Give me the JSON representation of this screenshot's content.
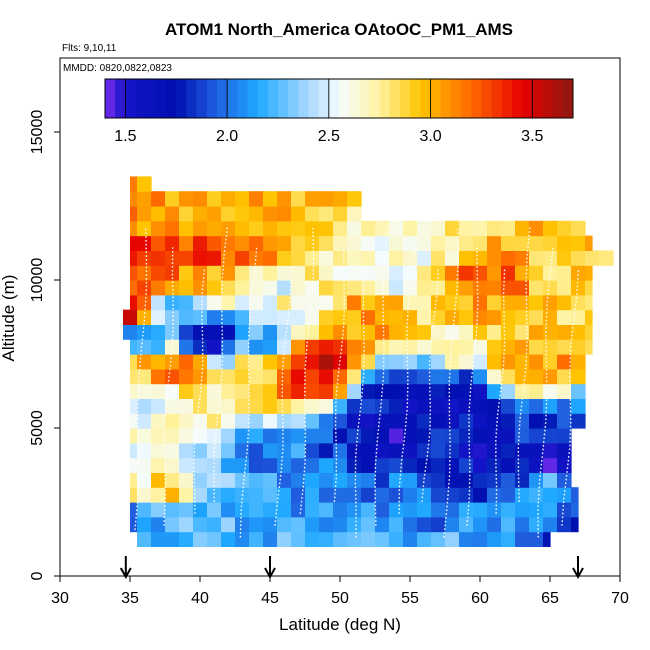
{
  "chart_data": {
    "type": "heatmap",
    "title": "ATOM1 North_America OAtoOC_PM1_AMS",
    "flights_label": "Flts: 9,10,11",
    "dates_label": "MMDD: 0820,0822,0823",
    "xlabel": "Latitude (deg N)",
    "ylabel": "Altitude (m)",
    "xlim": [
      30,
      70
    ],
    "ylim": [
      0,
      17500
    ],
    "x_ticks": [
      30,
      35,
      40,
      45,
      50,
      55,
      60,
      65,
      70
    ],
    "y_ticks": [
      0,
      5000,
      10000,
      15000
    ],
    "x_tick_labels": [
      "30",
      "35",
      "40",
      "45",
      "50",
      "55",
      "60",
      "65",
      "70"
    ],
    "y_tick_labels": [
      "0",
      "5000",
      "10000",
      "15000"
    ],
    "colorbar": {
      "range": [
        1.4,
        3.7
      ],
      "ticks": [
        1.5,
        2.0,
        2.5,
        3.0,
        3.5
      ],
      "tick_labels": [
        "1.5",
        "2.0",
        "2.5",
        "3.0",
        "3.5"
      ],
      "stops": [
        {
          "value": 1.4,
          "color": "#7b2cf0"
        },
        {
          "value": 1.5,
          "color": "#1414c8"
        },
        {
          "value": 1.75,
          "color": "#0010b0"
        },
        {
          "value": 1.95,
          "color": "#2060e0"
        },
        {
          "value": 2.15,
          "color": "#1ea8ff"
        },
        {
          "value": 2.4,
          "color": "#a9d9ff"
        },
        {
          "value": 2.55,
          "color": "#f5fcff"
        },
        {
          "value": 2.75,
          "color": "#fff3a0"
        },
        {
          "value": 2.95,
          "color": "#ffc400"
        },
        {
          "value": 3.2,
          "color": "#ff6a00"
        },
        {
          "value": 3.45,
          "color": "#e60000"
        },
        {
          "value": 3.7,
          "color": "#8e1a12"
        }
      ]
    },
    "grid_lat_start": 34.5,
    "grid_lat_step": 1,
    "grid_alt_start": 1000,
    "grid_alt_step": 500,
    "cells": [
      {
        "lat": 35.5,
        "alt": 1000,
        "value": 2.25
      },
      {
        "lat": 37.5,
        "alt": 1000,
        "value": 2.2
      },
      {
        "lat": 40.5,
        "alt": 1000,
        "value": 2.15
      },
      {
        "lat": 44.5,
        "alt": 1000,
        "value": 2.2
      },
      {
        "lat": 49.5,
        "alt": 1000,
        "value": 2.25
      },
      {
        "lat": 53.5,
        "alt": 1000,
        "value": 2.15
      },
      {
        "lat": 58.5,
        "alt": 1000,
        "value": 2.2
      },
      {
        "lat": 64.5,
        "alt": 1000,
        "value": 2.05
      },
      {
        "lat": 65.5,
        "alt": 1000,
        "value": 1.45
      },
      {
        "lat": 35.5,
        "alt": 2000,
        "value": 2.0
      },
      {
        "lat": 39.5,
        "alt": 2000,
        "value": 2.3
      },
      {
        "lat": 44.5,
        "alt": 2000,
        "value": 2.1
      },
      {
        "lat": 50.5,
        "alt": 2000,
        "value": 2.15
      },
      {
        "lat": 56.5,
        "alt": 2000,
        "value": 2.0
      },
      {
        "lat": 62.5,
        "alt": 2000,
        "value": 2.2
      },
      {
        "lat": 35.5,
        "alt": 3000,
        "value": 2.7
      },
      {
        "lat": 37.5,
        "alt": 3000,
        "value": 2.9
      },
      {
        "lat": 40.5,
        "alt": 3000,
        "value": 2.35
      },
      {
        "lat": 44.5,
        "alt": 3000,
        "value": 2.1
      },
      {
        "lat": 53.5,
        "alt": 3000,
        "value": 2.0
      },
      {
        "lat": 61.5,
        "alt": 3000,
        "value": 1.85
      },
      {
        "lat": 64.5,
        "alt": 3000,
        "value": 2.2
      },
      {
        "lat": 44.5,
        "alt": 4000,
        "value": 2.05
      },
      {
        "lat": 53.5,
        "alt": 4000,
        "value": 1.75
      },
      {
        "lat": 61.5,
        "alt": 4000,
        "value": 1.6
      },
      {
        "lat": 63.5,
        "alt": 4000,
        "value": 1.7
      },
      {
        "lat": 65.5,
        "alt": 4000,
        "value": 1.5
      },
      {
        "lat": 52.5,
        "alt": 5000,
        "value": 1.7
      },
      {
        "lat": 54.5,
        "alt": 5000,
        "value": 1.45
      },
      {
        "lat": 55.5,
        "alt": 5000,
        "value": 1.8
      },
      {
        "lat": 64.5,
        "alt": 5000,
        "value": 1.9
      },
      {
        "lat": 36.5,
        "alt": 6000,
        "value": 2.5
      },
      {
        "lat": 40.5,
        "alt": 6000,
        "value": 2.7
      },
      {
        "lat": 53.5,
        "alt": 6000,
        "value": 1.7
      },
      {
        "lat": 58.5,
        "alt": 6000,
        "value": 1.6
      },
      {
        "lat": 35.5,
        "alt": 7000,
        "value": 2.95
      },
      {
        "lat": 38.5,
        "alt": 7000,
        "value": 3.3
      },
      {
        "lat": 44.5,
        "alt": 7000,
        "value": 2.95
      },
      {
        "lat": 47.5,
        "alt": 7000,
        "value": 3.4
      },
      {
        "lat": 48.5,
        "alt": 7000,
        "value": 3.5
      },
      {
        "lat": 63.5,
        "alt": 7000,
        "value": 3.1
      },
      {
        "lat": 35.5,
        "alt": 8000,
        "value": 2.05
      },
      {
        "lat": 40.5,
        "alt": 8000,
        "value": 1.6
      },
      {
        "lat": 44.5,
        "alt": 8000,
        "value": 2.15
      },
      {
        "lat": 58.5,
        "alt": 8000,
        "value": 2.75
      },
      {
        "lat": 34.5,
        "alt": 9000,
        "value": 3.6
      },
      {
        "lat": 38.5,
        "alt": 9000,
        "value": 2.15
      },
      {
        "lat": 46.5,
        "alt": 9000,
        "value": 2.65
      },
      {
        "lat": 52.5,
        "alt": 9000,
        "value": 3.1
      },
      {
        "lat": 60.5,
        "alt": 9000,
        "value": 3.0
      },
      {
        "lat": 36.5,
        "alt": 10000,
        "value": 3.3
      },
      {
        "lat": 39.5,
        "alt": 10000,
        "value": 3.0
      },
      {
        "lat": 45.5,
        "alt": 10000,
        "value": 2.55
      },
      {
        "lat": 53.5,
        "alt": 10000,
        "value": 2.45
      },
      {
        "lat": 60.5,
        "alt": 10000,
        "value": 3.2
      },
      {
        "lat": 66.5,
        "alt": 10000,
        "value": 2.9
      },
      {
        "lat": 36.5,
        "alt": 11000,
        "value": 3.45
      },
      {
        "lat": 40.5,
        "alt": 11000,
        "value": 3.35
      },
      {
        "lat": 44.5,
        "alt": 11000,
        "value": 3.2
      },
      {
        "lat": 49.5,
        "alt": 11000,
        "value": 2.75
      },
      {
        "lat": 55.5,
        "alt": 11000,
        "value": 2.65
      },
      {
        "lat": 36.5,
        "alt": 12000,
        "value": 3.05
      },
      {
        "lat": 40.5,
        "alt": 12000,
        "value": 3.0
      },
      {
        "lat": 44.5,
        "alt": 12000,
        "value": 3.05
      },
      {
        "lat": 35.5,
        "alt": 12500,
        "value": 3.1
      }
    ],
    "flight_track_label": "flight tracks (white dotted lines)",
    "arrows_lat": [
      34.7,
      45.0,
      67.0
    ]
  }
}
